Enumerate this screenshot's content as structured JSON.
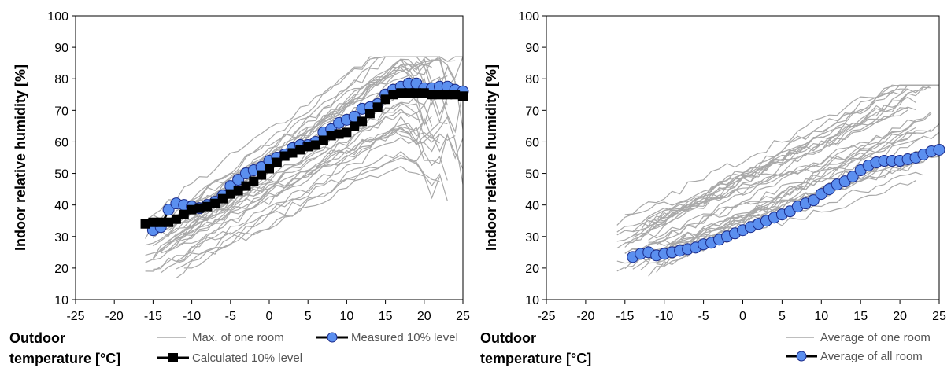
{
  "colors": {
    "gray": "#a8a8a8",
    "black": "#000000",
    "blue": "#5b8fef"
  },
  "chart_data": [
    {
      "type": "line",
      "ylabel": "Indoor relative humidity [%]",
      "xlabel_line1": "Outdoor",
      "xlabel_line2": "temperature [°C]",
      "xlim": [
        -25,
        25
      ],
      "ylim": [
        10,
        100
      ],
      "xticks": [
        "-25",
        "-20",
        "-15",
        "-10",
        "-5",
        "0",
        "5",
        "10",
        "15",
        "20",
        "25"
      ],
      "yticks": [
        "10",
        "20",
        "30",
        "40",
        "50",
        "60",
        "70",
        "80",
        "90",
        "100"
      ],
      "legend": [
        {
          "label": "Max. of one room",
          "style": "gray-line"
        },
        {
          "label": "Measured 10% level",
          "style": "blue-circle"
        },
        {
          "label": "Calculated 10% level",
          "style": "black-square"
        }
      ],
      "series": [
        {
          "name": "Measured 10% level",
          "style": "blue-circle",
          "x": [
            -15,
            -14,
            -13,
            -12,
            -11,
            -10,
            -9,
            -8,
            -7,
            -6,
            -5,
            -4,
            -3,
            -2,
            -1,
            0,
            1,
            2,
            3,
            4,
            5,
            6,
            7,
            8,
            9,
            10,
            11,
            12,
            13,
            14,
            15,
            16,
            17,
            18,
            19,
            20,
            21,
            22,
            23,
            24,
            25
          ],
          "values": [
            32,
            33,
            38.5,
            40.5,
            40,
            39.5,
            39,
            40,
            41,
            43,
            46,
            48,
            50,
            51,
            52,
            54,
            55,
            56,
            58,
            59,
            59,
            60,
            63,
            64,
            66,
            67,
            68,
            70.5,
            71,
            72,
            75,
            76.5,
            77.5,
            78.5,
            78.5,
            77,
            77,
            77.5,
            77.5,
            76.5,
            76
          ]
        },
        {
          "name": "Calculated 10% level",
          "style": "black-square",
          "x": [
            -16,
            -15,
            -14,
            -13,
            -12,
            -11,
            -10,
            -9,
            -8,
            -7,
            -6,
            -5,
            -4,
            -3,
            -2,
            -1,
            0,
            1,
            2,
            3,
            4,
            5,
            6,
            7,
            8,
            9,
            10,
            11,
            12,
            13,
            14,
            15,
            16,
            17,
            18,
            19,
            20,
            21,
            22,
            23,
            24,
            25
          ],
          "values": [
            34,
            34.5,
            34.5,
            34.5,
            35.5,
            37,
            38.5,
            39,
            39.5,
            40.5,
            42,
            43.5,
            44.5,
            46,
            47.5,
            49.5,
            51.5,
            53.5,
            55.5,
            56.5,
            57.5,
            58.5,
            59,
            60.5,
            62,
            62.5,
            63,
            65,
            66.5,
            69,
            71,
            73.5,
            75,
            75.5,
            75.5,
            75.5,
            75.5,
            75,
            75,
            75,
            75,
            74.5
          ]
        }
      ]
    },
    {
      "type": "line",
      "ylabel": "Indoor relative humidity [%]",
      "xlabel_line1": "Outdoor",
      "xlabel_line2": "temperature [°C]",
      "xlim": [
        -25,
        25
      ],
      "ylim": [
        10,
        100
      ],
      "xticks": [
        "-25",
        "-20",
        "-15",
        "-10",
        "-5",
        "0",
        "5",
        "10",
        "15",
        "20",
        "25"
      ],
      "yticks": [
        "10",
        "20",
        "30",
        "40",
        "50",
        "60",
        "70",
        "80",
        "90",
        "100"
      ],
      "legend": [
        {
          "label": "Average of one room",
          "style": "gray-line"
        },
        {
          "label": "Average of all room",
          "style": "blue-circle"
        }
      ],
      "series": [
        {
          "name": "Average of all room",
          "style": "blue-circle",
          "x": [
            -14,
            -13,
            -12,
            -11,
            -10,
            -9,
            -8,
            -7,
            -6,
            -5,
            -4,
            -3,
            -2,
            -1,
            0,
            1,
            2,
            3,
            4,
            5,
            6,
            7,
            8,
            9,
            10,
            11,
            12,
            13,
            14,
            15,
            16,
            17,
            18,
            19,
            20,
            21,
            22,
            23,
            24,
            25
          ],
          "values": [
            23.5,
            24.5,
            25,
            24,
            24.5,
            25,
            25.5,
            26,
            26.5,
            27.5,
            28,
            29,
            30,
            31,
            32,
            33,
            34,
            35,
            36,
            37,
            38,
            39.5,
            40.5,
            41.5,
            43.5,
            45,
            46.5,
            47.5,
            49,
            51,
            52.5,
            53.5,
            54,
            54,
            54,
            54.5,
            55,
            56,
            57,
            57.5
          ]
        }
      ]
    }
  ]
}
